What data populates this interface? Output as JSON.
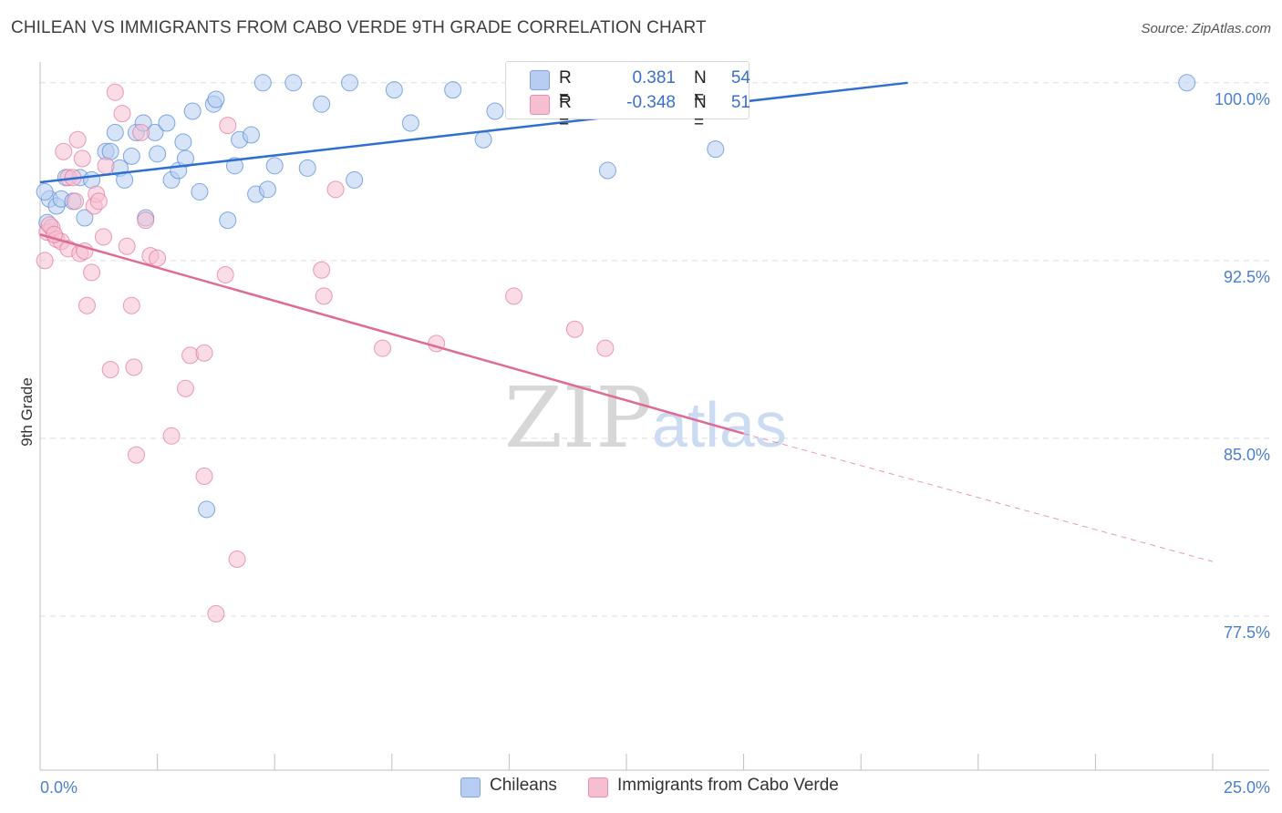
{
  "header": {
    "title": "CHILEAN VS IMMIGRANTS FROM CABO VERDE 9TH GRADE CORRELATION CHART",
    "source": "Source: ZipAtlas.com"
  },
  "legend": {
    "rows": [
      {
        "r_label": "R =",
        "r_value": "0.381",
        "n_label": "N =",
        "n_value": "54"
      },
      {
        "r_label": "R =",
        "r_value": "-0.348",
        "n_label": "N =",
        "n_value": "51"
      }
    ]
  },
  "bottom_legend": {
    "items": [
      {
        "label": "Chileans"
      },
      {
        "label": "Immigrants from Cabo Verde"
      }
    ]
  },
  "watermark": {
    "part1": "ZIP",
    "part2": "atlas"
  },
  "colors": {
    "blue": "#4f86d8",
    "blue_fill": "#b7cdf1",
    "pink": "#e2739b",
    "pink_fill": "#f6bfd1",
    "tick_text": "#4a7fd0",
    "grid": "#dddddd"
  },
  "chart_data": {
    "type": "scatter",
    "title": "CHILEAN VS IMMIGRANTS FROM CABO VERDE 9TH GRADE CORRELATION CHART",
    "xlabel": "",
    "ylabel": "9th Grade",
    "xlim": [
      0,
      25
    ],
    "ylim": [
      71.0,
      100.8
    ],
    "x_tick_labels": [
      "0.0%",
      "25.0%"
    ],
    "y_ticks": [
      77.5,
      85.0,
      92.5,
      100.0
    ],
    "y_tick_labels": [
      "77.5%",
      "85.0%",
      "92.5%",
      "100.0%"
    ],
    "grid": true,
    "legend_position": "top-center",
    "series": [
      {
        "name": "Chileans",
        "color": "#4f86d8",
        "trend": {
          "x": [
            0.0,
            18.5
          ],
          "y": [
            95.8,
            100.0
          ]
        },
        "points": [
          {
            "x": 0.15,
            "y": 94.1
          },
          {
            "x": 0.2,
            "y": 95.1
          },
          {
            "x": 0.35,
            "y": 94.8
          },
          {
            "x": 0.45,
            "y": 95.1
          },
          {
            "x": 0.55,
            "y": 96.0
          },
          {
            "x": 0.7,
            "y": 95.0
          },
          {
            "x": 0.85,
            "y": 96.0
          },
          {
            "x": 0.95,
            "y": 94.3
          },
          {
            "x": 1.1,
            "y": 95.9
          },
          {
            "x": 1.4,
            "y": 97.1
          },
          {
            "x": 1.5,
            "y": 97.1
          },
          {
            "x": 1.6,
            "y": 97.9
          },
          {
            "x": 1.7,
            "y": 96.4
          },
          {
            "x": 1.8,
            "y": 95.9
          },
          {
            "x": 1.95,
            "y": 96.9
          },
          {
            "x": 2.05,
            "y": 97.9
          },
          {
            "x": 2.2,
            "y": 98.3
          },
          {
            "x": 2.25,
            "y": 94.3
          },
          {
            "x": 2.45,
            "y": 97.9
          },
          {
            "x": 2.5,
            "y": 97.0
          },
          {
            "x": 2.7,
            "y": 98.3
          },
          {
            "x": 2.8,
            "y": 95.9
          },
          {
            "x": 2.95,
            "y": 96.3
          },
          {
            "x": 3.05,
            "y": 97.5
          },
          {
            "x": 3.1,
            "y": 96.8
          },
          {
            "x": 3.25,
            "y": 98.8
          },
          {
            "x": 3.4,
            "y": 95.4
          },
          {
            "x": 3.7,
            "y": 99.1
          },
          {
            "x": 3.75,
            "y": 99.3
          },
          {
            "x": 4.0,
            "y": 94.2
          },
          {
            "x": 4.15,
            "y": 96.5
          },
          {
            "x": 4.25,
            "y": 97.6
          },
          {
            "x": 4.5,
            "y": 97.8
          },
          {
            "x": 4.6,
            "y": 95.3
          },
          {
            "x": 4.75,
            "y": 100.0
          },
          {
            "x": 4.85,
            "y": 95.5
          },
          {
            "x": 5.0,
            "y": 96.5
          },
          {
            "x": 5.4,
            "y": 100.0
          },
          {
            "x": 5.7,
            "y": 96.4
          },
          {
            "x": 6.0,
            "y": 99.1
          },
          {
            "x": 6.6,
            "y": 100.0
          },
          {
            "x": 6.7,
            "y": 95.9
          },
          {
            "x": 7.55,
            "y": 99.7
          },
          {
            "x": 7.9,
            "y": 98.3
          },
          {
            "x": 8.8,
            "y": 99.7
          },
          {
            "x": 9.45,
            "y": 97.6
          },
          {
            "x": 9.7,
            "y": 98.8
          },
          {
            "x": 12.1,
            "y": 96.3
          },
          {
            "x": 13.7,
            "y": 100.0
          },
          {
            "x": 13.9,
            "y": 100.0
          },
          {
            "x": 14.4,
            "y": 97.2
          },
          {
            "x": 24.45,
            "y": 100.0
          },
          {
            "x": 3.55,
            "y": 82.0
          },
          {
            "x": 0.1,
            "y": 95.4
          }
        ]
      },
      {
        "name": "Immigrants from Cabo Verde",
        "color": "#e2739b",
        "trend": {
          "x": [
            0.0,
            15.0
          ],
          "y": [
            93.6,
            85.2
          ]
        },
        "trend_extension": {
          "x": [
            15.0,
            25.0
          ],
          "y": [
            85.2,
            79.8
          ]
        },
        "points": [
          {
            "x": 0.1,
            "y": 92.5
          },
          {
            "x": 0.15,
            "y": 93.7
          },
          {
            "x": 0.25,
            "y": 93.9
          },
          {
            "x": 0.35,
            "y": 93.4
          },
          {
            "x": 0.45,
            "y": 93.3
          },
          {
            "x": 0.5,
            "y": 97.1
          },
          {
            "x": 0.6,
            "y": 93.0
          },
          {
            "x": 0.6,
            "y": 96.0
          },
          {
            "x": 0.7,
            "y": 96.0
          },
          {
            "x": 0.75,
            "y": 95.0
          },
          {
            "x": 0.8,
            "y": 97.6
          },
          {
            "x": 0.85,
            "y": 92.8
          },
          {
            "x": 0.9,
            "y": 96.8
          },
          {
            "x": 0.95,
            "y": 92.9
          },
          {
            "x": 1.0,
            "y": 90.6
          },
          {
            "x": 1.1,
            "y": 92.0
          },
          {
            "x": 1.15,
            "y": 94.8
          },
          {
            "x": 1.2,
            "y": 95.3
          },
          {
            "x": 1.25,
            "y": 95.0
          },
          {
            "x": 1.35,
            "y": 93.5
          },
          {
            "x": 1.4,
            "y": 96.5
          },
          {
            "x": 1.5,
            "y": 87.9
          },
          {
            "x": 1.6,
            "y": 99.6
          },
          {
            "x": 1.75,
            "y": 98.7
          },
          {
            "x": 1.85,
            "y": 93.1
          },
          {
            "x": 1.95,
            "y": 90.6
          },
          {
            "x": 2.0,
            "y": 88.0
          },
          {
            "x": 2.05,
            "y": 84.3
          },
          {
            "x": 2.15,
            "y": 97.9
          },
          {
            "x": 2.25,
            "y": 94.2
          },
          {
            "x": 2.35,
            "y": 92.7
          },
          {
            "x": 2.5,
            "y": 92.6
          },
          {
            "x": 2.8,
            "y": 85.1
          },
          {
            "x": 3.1,
            "y": 87.1
          },
          {
            "x": 3.2,
            "y": 88.5
          },
          {
            "x": 3.5,
            "y": 88.6
          },
          {
            "x": 3.5,
            "y": 83.4
          },
          {
            "x": 3.75,
            "y": 77.6
          },
          {
            "x": 3.95,
            "y": 91.9
          },
          {
            "x": 4.0,
            "y": 98.2
          },
          {
            "x": 4.2,
            "y": 79.9
          },
          {
            "x": 6.0,
            "y": 92.1
          },
          {
            "x": 6.05,
            "y": 91.0
          },
          {
            "x": 6.3,
            "y": 95.5
          },
          {
            "x": 7.3,
            "y": 88.8
          },
          {
            "x": 8.45,
            "y": 89.0
          },
          {
            "x": 10.1,
            "y": 91.0
          },
          {
            "x": 11.4,
            "y": 89.6
          },
          {
            "x": 12.05,
            "y": 88.8
          },
          {
            "x": 0.2,
            "y": 94.0
          },
          {
            "x": 0.3,
            "y": 93.6
          }
        ]
      }
    ]
  }
}
